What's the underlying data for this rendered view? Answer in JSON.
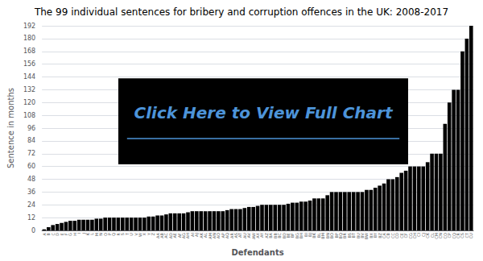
{
  "chart_data": {
    "type": "bar",
    "title": "The 99 individual sentences for bribery and corruption offences in the UK: 2008-2017",
    "xlabel": "Defendants",
    "ylabel": "Sentence in months",
    "annotation": "Click Here to View Full Chart",
    "categories": [
      "A",
      "B",
      "C",
      "D",
      "E",
      "F",
      "G",
      "H",
      "I",
      "J",
      "K",
      "L",
      "M",
      "N",
      "O",
      "P",
      "Q",
      "R",
      "S",
      "T",
      "U",
      "V",
      "W",
      "X",
      "Y",
      "Z",
      "AA",
      "AB",
      "AC",
      "AD",
      "AE",
      "AF",
      "AG",
      "AH",
      "AI",
      "AJ",
      "AK",
      "AL",
      "AM",
      "AN",
      "AO",
      "AP",
      "AQ",
      "AR",
      "AS",
      "AT",
      "AU",
      "AV",
      "AW",
      "AX",
      "AY",
      "AZ",
      "BA",
      "BB",
      "BC",
      "BD",
      "BE",
      "BF",
      "BG",
      "BH",
      "BI",
      "BJ",
      "BK",
      "BL",
      "BM",
      "BN",
      "BO",
      "BP",
      "BQ",
      "BR",
      "BS",
      "BT",
      "BU",
      "BV",
      "BW",
      "BX",
      "BY",
      "BZ",
      "CA",
      "CB",
      "CC",
      "CD",
      "CE",
      "CF",
      "CG",
      "CH",
      "CI",
      "CJ",
      "CK",
      "CL",
      "CM",
      "CN",
      "CO",
      "CP",
      "CQ",
      "CR",
      "CS",
      "CT",
      "CU"
    ],
    "values": [
      1,
      3,
      5,
      6,
      7,
      8,
      9,
      9,
      10,
      10,
      10,
      10,
      11,
      11,
      12,
      12,
      12,
      12,
      12,
      12,
      12,
      12,
      12,
      12,
      13,
      13,
      14,
      14,
      15,
      16,
      16,
      16,
      16,
      17,
      18,
      18,
      18,
      18,
      18,
      18,
      18,
      18,
      19,
      20,
      20,
      20,
      21,
      22,
      22,
      23,
      24,
      24,
      24,
      24,
      24,
      24,
      25,
      26,
      26,
      27,
      27,
      28,
      30,
      30,
      30,
      33,
      36,
      36,
      36,
      36,
      36,
      36,
      36,
      36,
      38,
      38,
      40,
      42,
      44,
      48,
      48,
      50,
      54,
      56,
      60,
      60,
      60,
      60,
      64,
      72,
      72,
      72,
      100,
      120,
      132,
      132,
      168,
      180,
      192
    ],
    "color": "#000000",
    "ylim": [
      0,
      192
    ],
    "yticks": [
      0,
      12,
      24,
      36,
      48,
      60,
      72,
      84,
      96,
      108,
      120,
      132,
      144,
      156,
      168,
      180,
      192
    ],
    "grid": true
  }
}
